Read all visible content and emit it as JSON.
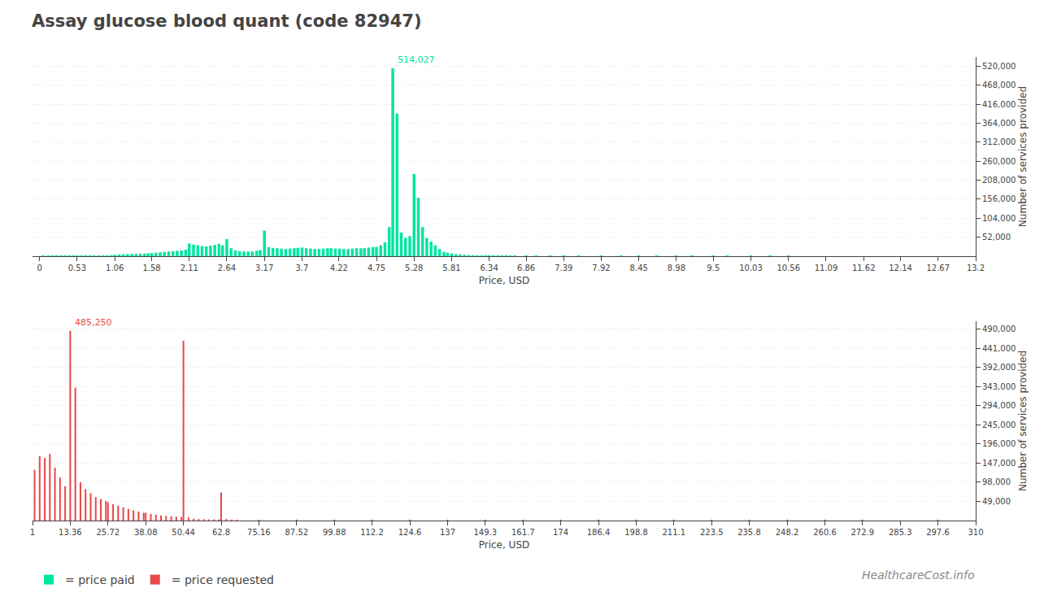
{
  "chart_data": [
    {
      "type": "bar",
      "title": "Assay glucose blood quant (code 82947)",
      "x_label": "Price, USD",
      "y_label": "Number of services provided",
      "x": [
        0.05,
        0.12,
        0.18,
        0.24,
        0.3,
        0.36,
        0.42,
        0.48,
        0.53,
        0.59,
        0.65,
        0.71,
        0.77,
        0.83,
        0.89,
        0.95,
        1.01,
        1.06,
        1.12,
        1.18,
        1.24,
        1.3,
        1.36,
        1.42,
        1.48,
        1.53,
        1.58,
        1.64,
        1.7,
        1.76,
        1.82,
        1.88,
        1.94,
        2.0,
        2.06,
        2.11,
        2.17,
        2.23,
        2.29,
        2.35,
        2.41,
        2.47,
        2.53,
        2.58,
        2.64,
        2.7,
        2.76,
        2.82,
        2.88,
        2.94,
        3.0,
        3.06,
        3.11,
        3.17,
        3.23,
        3.29,
        3.35,
        3.41,
        3.47,
        3.53,
        3.59,
        3.64,
        3.7,
        3.76,
        3.82,
        3.88,
        3.94,
        4.0,
        4.06,
        4.11,
        4.17,
        4.23,
        4.29,
        4.35,
        4.41,
        4.47,
        4.53,
        4.58,
        4.64,
        4.7,
        4.75,
        4.81,
        4.87,
        4.93,
        4.98,
        5.04,
        5.1,
        5.16,
        5.22,
        5.28,
        5.34,
        5.4,
        5.46,
        5.52,
        5.58,
        5.64,
        5.7,
        5.75,
        5.81,
        5.87,
        5.93,
        5.99,
        6.05,
        6.11,
        6.17,
        6.23,
        6.29,
        6.34,
        6.4,
        6.46,
        6.52,
        6.58,
        6.64,
        6.7,
        6.86,
        7.0,
        7.2,
        7.39,
        7.6,
        7.92,
        8.2,
        8.45,
        8.7,
        8.98,
        9.2,
        9.5,
        9.7,
        10.03,
        10.3,
        10.56,
        10.8,
        11.09,
        11.4,
        11.62,
        11.9,
        12.14,
        12.4,
        12.67,
        13.0
      ],
      "series": [
        {
          "name": "= price paid",
          "color": "#00e5a0",
          "values": [
            1500,
            1000,
            800,
            600,
            700,
            600,
            700,
            800,
            1200,
            1400,
            1600,
            1800,
            2000,
            2200,
            2500,
            2800,
            3000,
            4000,
            5000,
            5500,
            6000,
            6200,
            6500,
            7000,
            7500,
            8000,
            9000,
            10000,
            11000,
            12000,
            13000,
            14000,
            15000,
            16000,
            18000,
            35000,
            32000,
            30000,
            28000,
            27000,
            29000,
            31000,
            34000,
            30000,
            47000,
            22000,
            16000,
            14000,
            13000,
            13000,
            13000,
            15000,
            17000,
            70000,
            25000,
            23000,
            22000,
            21000,
            20000,
            21000,
            22000,
            23000,
            24000,
            22000,
            21000,
            20000,
            20000,
            21000,
            22000,
            22000,
            21000,
            21000,
            20000,
            20000,
            21000,
            22000,
            22000,
            22000,
            24000,
            25000,
            26000,
            30000,
            38000,
            80000,
            514027,
            390000,
            65000,
            50000,
            55000,
            225000,
            160000,
            80000,
            50000,
            40000,
            30000,
            20000,
            12000,
            10000,
            8000,
            6000,
            5000,
            4000,
            3500,
            3000,
            2800,
            2600,
            2400,
            2200,
            2000,
            1900,
            1800,
            1700,
            1600,
            1500,
            1400,
            1300,
            1200,
            1100,
            1000,
            900,
            800,
            700,
            600,
            500,
            400,
            350,
            300,
            280,
            260,
            240,
            220,
            200,
            180,
            160,
            150,
            140,
            130,
            120,
            110
          ]
        }
      ],
      "xlim": [
        -0.1,
        13.2
      ],
      "xticks": [
        0,
        0.53,
        1.06,
        1.58,
        2.11,
        2.64,
        3.17,
        3.7,
        4.22,
        4.75,
        5.28,
        5.81,
        6.34,
        6.86,
        7.39,
        7.92,
        8.45,
        8.98,
        9.5,
        10.03,
        10.56,
        11.09,
        11.62,
        12.14,
        12.67,
        13.2
      ],
      "ylim": [
        0,
        545000
      ],
      "yticks": [
        {
          "value": 52000,
          "label": "52,000"
        },
        {
          "value": 104000,
          "label": "104,000"
        },
        {
          "value": 156000,
          "label": "156,000"
        },
        {
          "value": 208000,
          "label": "208,000"
        },
        {
          "value": 260000,
          "label": "260,000"
        },
        {
          "value": 312000,
          "label": "312,000"
        },
        {
          "value": 364000,
          "label": "364,000"
        },
        {
          "value": 416000,
          "label": "416,000"
        },
        {
          "value": 468000,
          "label": "468,000"
        },
        {
          "value": 520000,
          "label": "520,000"
        }
      ],
      "grid": true,
      "legend": "lower left",
      "annotations": [
        {
          "text": "514,027",
          "x": 4.98,
          "y": 514027,
          "color": "#00e5a0"
        }
      ]
    },
    {
      "type": "bar",
      "x_label": "Price, USD",
      "y_label": "Number of services provided",
      "x": [
        1.67,
        3.34,
        5.01,
        6.68,
        8.35,
        10.02,
        11.69,
        13.36,
        15.03,
        16.7,
        18.37,
        20.04,
        21.71,
        23.38,
        25.05,
        25.72,
        27.39,
        29.06,
        30.73,
        32.4,
        34.07,
        35.74,
        37.41,
        38.08,
        39.75,
        41.42,
        43.09,
        44.76,
        46.43,
        48.1,
        49.77,
        50.44,
        52.11,
        53.78,
        55.45,
        57.12,
        58.79,
        60.46,
        62.13,
        62.8,
        64.47,
        66.14,
        68.0,
        75.16,
        87.52,
        99.88,
        112.2,
        124.6,
        137.0,
        149.3,
        161.7,
        174.0,
        186.4,
        198.8,
        211.1,
        223.5,
        235.8,
        248.2,
        260.6,
        272.9,
        285.3,
        297.6,
        310.0
      ],
      "series": [
        {
          "name": "= price requested",
          "color": "#e84848",
          "values": [
            130000,
            165000,
            160000,
            170000,
            135000,
            110000,
            88000,
            485250,
            340000,
            98000,
            80000,
            70000,
            60000,
            55000,
            50000,
            47000,
            42000,
            38000,
            34000,
            30000,
            26000,
            23000,
            20000,
            20000,
            17000,
            15000,
            13000,
            12000,
            11000,
            10000,
            9000,
            460000,
            8000,
            5000,
            4000,
            3500,
            3000,
            3000,
            3000,
            72000,
            4000,
            2500,
            2000,
            2000,
            1500,
            1500,
            1200,
            1000,
            800,
            600,
            2200,
            1000,
            600,
            500,
            1000,
            400,
            350,
            300,
            250,
            250,
            200,
            300,
            200
          ]
        }
      ],
      "xlim": [
        1,
        310
      ],
      "xticks": [
        1,
        13.36,
        25.72,
        38.08,
        50.44,
        62.8,
        75.16,
        87.52,
        99.88,
        112.2,
        124.6,
        137,
        149.3,
        161.7,
        174,
        186.4,
        198.8,
        211.1,
        223.5,
        235.8,
        248.2,
        260.6,
        272.9,
        285.3,
        297.6,
        310
      ],
      "ylim": [
        0,
        510000
      ],
      "yticks": [
        {
          "value": 49000,
          "label": "49,000"
        },
        {
          "value": 98000,
          "label": "98,000"
        },
        {
          "value": 147000,
          "label": "147,000"
        },
        {
          "value": 196000,
          "label": "196,000"
        },
        {
          "value": 245000,
          "label": "245,000"
        },
        {
          "value": 294000,
          "label": "294,000"
        },
        {
          "value": 343000,
          "label": "343,000"
        },
        {
          "value": 392000,
          "label": "392,000"
        },
        {
          "value": 441000,
          "label": "441,000"
        },
        {
          "value": 490000,
          "label": "490,000"
        }
      ],
      "grid": true,
      "legend": "lower left",
      "annotations": [
        {
          "text": "485,250",
          "x": 13.36,
          "y": 485250,
          "color": "#e84848"
        },
        {
          "text": "HealthcareCost.info"
        }
      ]
    }
  ]
}
